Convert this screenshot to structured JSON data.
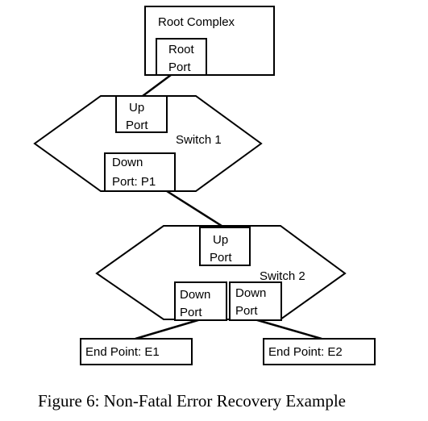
{
  "root_complex": {
    "label": "Root Complex",
    "port": [
      "Root",
      "Port"
    ]
  },
  "switch1": {
    "label": "Switch 1",
    "up_port": [
      "Up",
      "Port"
    ],
    "down_port": [
      "Down",
      "Port: P1"
    ]
  },
  "switch2": {
    "label": "Switch 2",
    "up_port": [
      "Up",
      "Port"
    ],
    "down_port_left": [
      "Down",
      "Port"
    ],
    "down_port_right": [
      "Down",
      "Port"
    ]
  },
  "endpoints": {
    "e1": "End Point: E1",
    "e2": "End Point: E2"
  },
  "caption": "Figure 6: Non-Fatal Error Recovery Example"
}
